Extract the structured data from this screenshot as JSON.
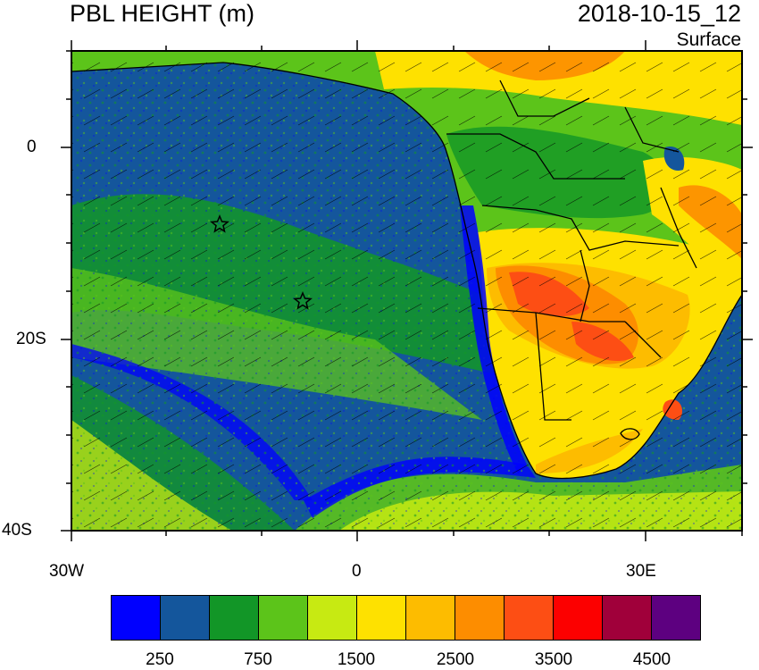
{
  "title": "PBL HEIGHT (m)",
  "date": "2018-10-15_12",
  "level": "Surface",
  "axes": {
    "lat_labels": [
      "0",
      "20S",
      "40S"
    ],
    "lon_labels": [
      "30W",
      "0",
      "30E"
    ]
  },
  "colorbar": {
    "colors": [
      "#0000ff",
      "#14569c",
      "#129627",
      "#5cc41a",
      "#c7ea12",
      "#fee100",
      "#fdbc00",
      "#fd8d00",
      "#fd4e14",
      "#fc0000",
      "#a0003a",
      "#5d0080"
    ],
    "labels": [
      "250",
      "750",
      "1500",
      "2500",
      "3500",
      "4500"
    ]
  },
  "markers": [
    "star",
    "star"
  ]
}
